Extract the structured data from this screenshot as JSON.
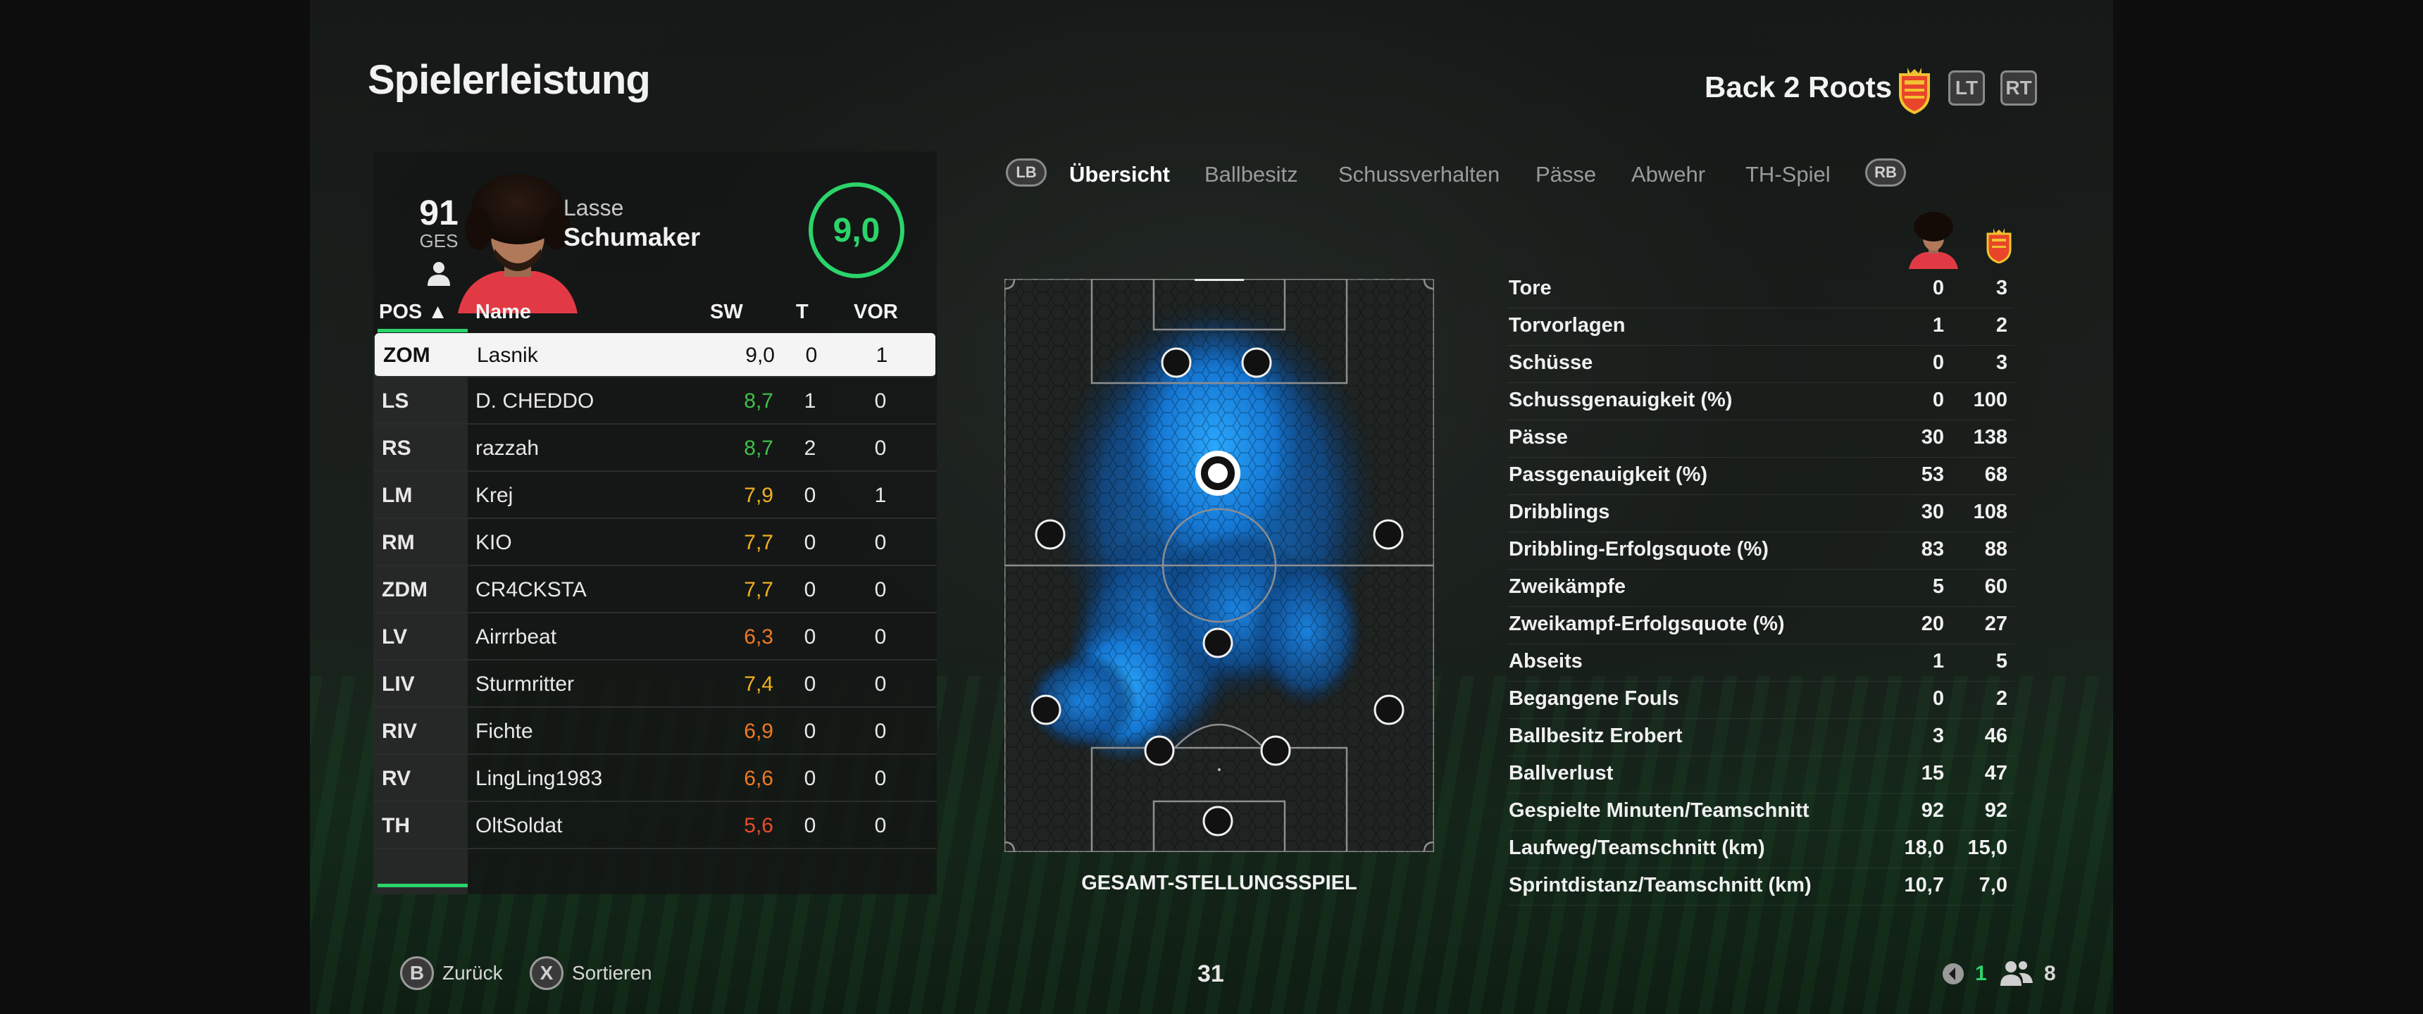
{
  "header": {
    "title": "Spielerleistung",
    "club_name": "Back 2 Roots",
    "btn_lt": "LT",
    "btn_rt": "RT"
  },
  "player": {
    "overall": "91",
    "overall_label": "GES",
    "first_name": "Lasse",
    "last_name": "Schumaker",
    "match_rating": "9,0"
  },
  "table": {
    "headers": {
      "pos": "POS ▲",
      "name": "Name",
      "sw": "SW",
      "t": "T",
      "vor": "VOR"
    },
    "rows": [
      {
        "pos": "ZOM",
        "name": "Lasnik",
        "sw": "9,0",
        "t": "0",
        "vor": "1",
        "color": "#111111"
      },
      {
        "pos": "LS",
        "name": "D. CHEDDO",
        "sw": "8,7",
        "t": "1",
        "vor": "0",
        "color": "#3fbf4a"
      },
      {
        "pos": "RS",
        "name": "razzah",
        "sw": "8,7",
        "t": "2",
        "vor": "0",
        "color": "#3fbf4a"
      },
      {
        "pos": "LM",
        "name": "Krej",
        "sw": "7,9",
        "t": "0",
        "vor": "1",
        "color": "#f2b01e"
      },
      {
        "pos": "RM",
        "name": "KIO",
        "sw": "7,7",
        "t": "0",
        "vor": "0",
        "color": "#f2b01e"
      },
      {
        "pos": "ZDM",
        "name": "CR4CKSTA",
        "sw": "7,7",
        "t": "0",
        "vor": "0",
        "color": "#f2b01e"
      },
      {
        "pos": "LV",
        "name": "Airrrbeat",
        "sw": "6,3",
        "t": "0",
        "vor": "0",
        "color": "#f07a22"
      },
      {
        "pos": "LIV",
        "name": "Sturmritter",
        "sw": "7,4",
        "t": "0",
        "vor": "0",
        "color": "#f2b01e"
      },
      {
        "pos": "RIV",
        "name": "Fichte",
        "sw": "6,9",
        "t": "0",
        "vor": "0",
        "color": "#f07a22"
      },
      {
        "pos": "RV",
        "name": "LingLing1983",
        "sw": "6,6",
        "t": "0",
        "vor": "0",
        "color": "#f07a22"
      },
      {
        "pos": "TH",
        "name": "OltSoldat",
        "sw": "5,6",
        "t": "0",
        "vor": "0",
        "color": "#ec4a2a"
      }
    ]
  },
  "tabs": {
    "lb": "LB",
    "rb": "RB",
    "items": [
      "Übersicht",
      "Ballbesitz",
      "Schussverhalten",
      "Pässe",
      "Abwehr",
      "TH-Spiel"
    ]
  },
  "pitch": {
    "caption": "GESAMT-STELLUNGSSPIEL"
  },
  "stats": [
    {
      "label": "Tore",
      "me": "0",
      "team": "3"
    },
    {
      "label": "Torvorlagen",
      "me": "1",
      "team": "2"
    },
    {
      "label": "Schüsse",
      "me": "0",
      "team": "3"
    },
    {
      "label": "Schussgenauigkeit (%)",
      "me": "0",
      "team": "100"
    },
    {
      "label": "Pässe",
      "me": "30",
      "team": "138"
    },
    {
      "label": "Passgenauigkeit (%)",
      "me": "53",
      "team": "68"
    },
    {
      "label": "Dribblings",
      "me": "30",
      "team": "108"
    },
    {
      "label": "Dribbling-Erfolgsquote (%)",
      "me": "83",
      "team": "88"
    },
    {
      "label": "Zweikämpfe",
      "me": "5",
      "team": "60"
    },
    {
      "label": "Zweikampf-Erfolgsquote (%)",
      "me": "20",
      "team": "27"
    },
    {
      "label": "Abseits",
      "me": "1",
      "team": "5"
    },
    {
      "label": "Begangene Fouls",
      "me": "0",
      "team": "2"
    },
    {
      "label": "Ballbesitz Erobert",
      "me": "3",
      "team": "46"
    },
    {
      "label": "Ballverlust",
      "me": "15",
      "team": "47"
    },
    {
      "label": "Gespielte Minuten/Teamschnitt",
      "me": "92",
      "team": "92"
    },
    {
      "label": "Laufweg/Teamschnitt (km)",
      "me": "18,0",
      "team": "15,0"
    },
    {
      "label": "Sprintdistanz/Teamschnitt (km)",
      "me": "10,7",
      "team": "7,0"
    }
  ],
  "footer": {
    "back_btn": "B",
    "back_label": "Zurück",
    "sort_btn": "X",
    "sort_label": "Sortieren",
    "page_num": "31",
    "signal_count": "1",
    "players_count": "8"
  },
  "colors": {
    "accent_green": "#2bd46a",
    "heat_blue": "#1e90ff"
  }
}
